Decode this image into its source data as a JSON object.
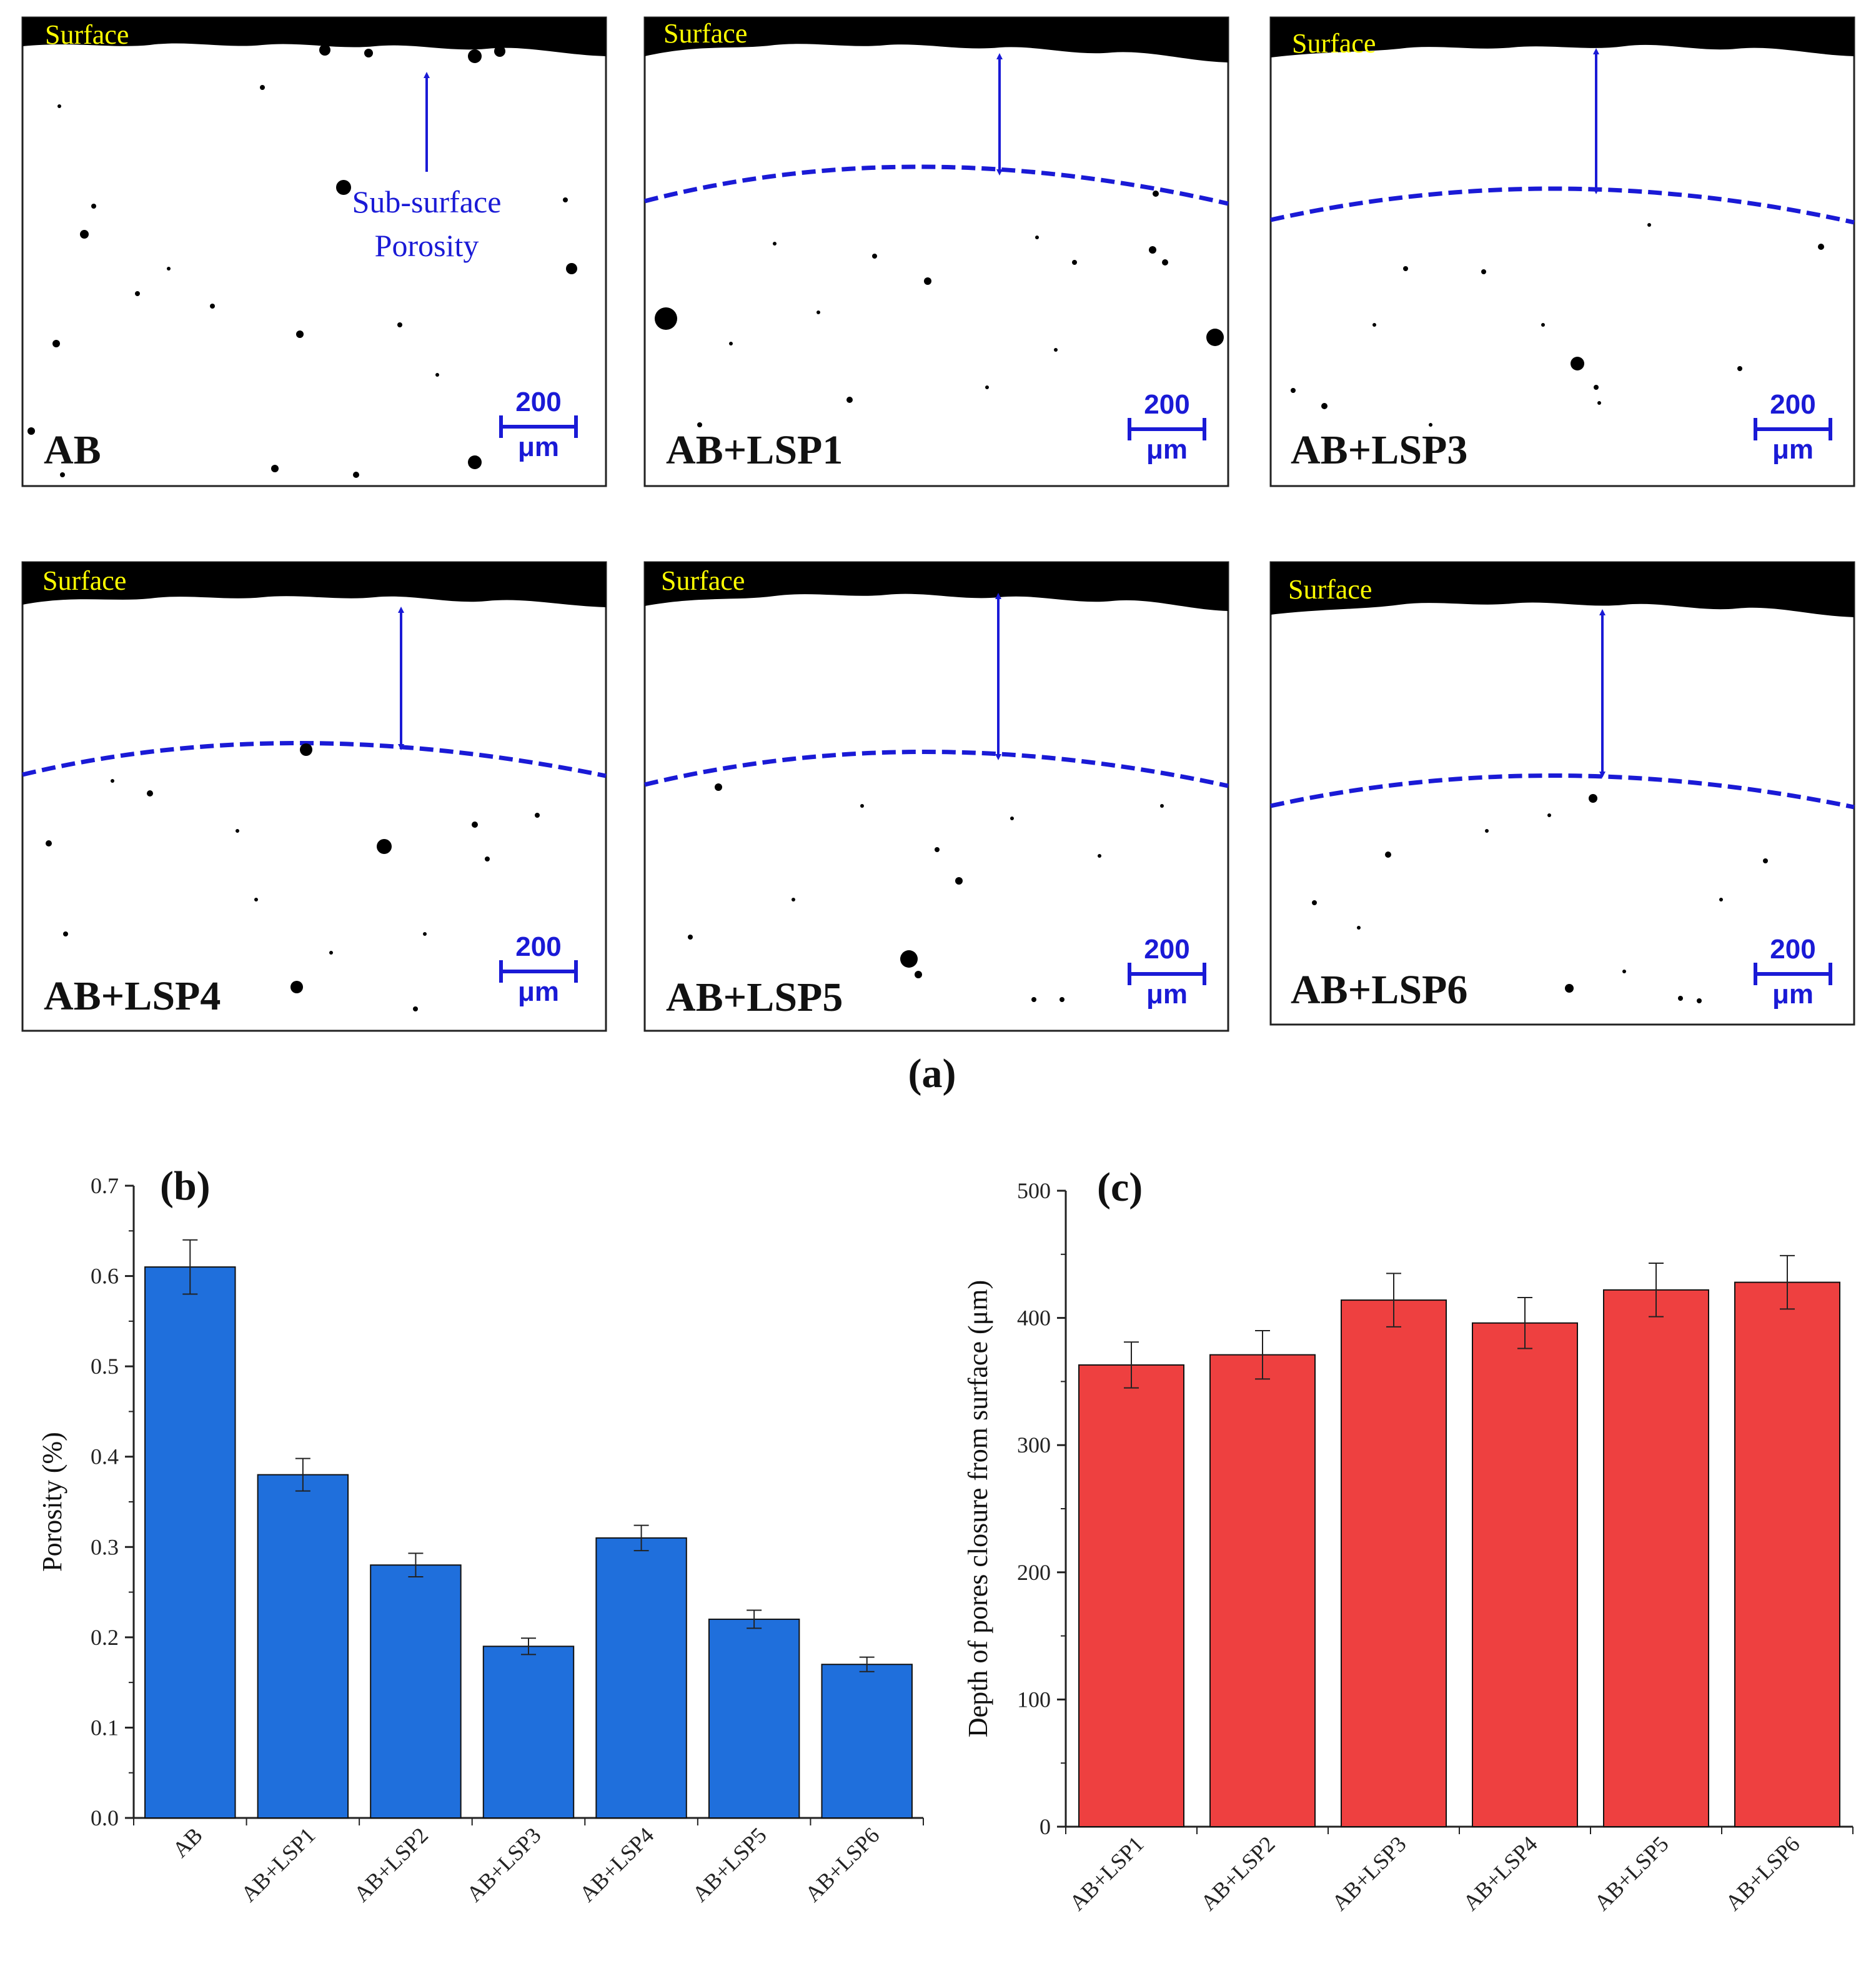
{
  "figure": {
    "label_a": "(a)",
    "micrographs": [
      {
        "name": "AB",
        "surface": "Surface",
        "scale_value": "200",
        "scale_unit": "μm"
      },
      {
        "name": "AB+LSP1",
        "surface": "Surface",
        "scale_value": "200",
        "scale_unit": "μm"
      },
      {
        "name": "AB+LSP3",
        "surface": "Surface",
        "scale_value": "200",
        "scale_unit": "μm"
      },
      {
        "name": "AB+LSP4",
        "surface": "Surface",
        "scale_value": "200",
        "scale_unit": "μm"
      },
      {
        "name": "AB+LSP5",
        "surface": "Surface",
        "scale_value": "200",
        "scale_unit": "μm"
      },
      {
        "name": "AB+LSP6",
        "surface": "Surface",
        "scale_value": "200",
        "scale_unit": "μm"
      }
    ],
    "annotation_line1": "Sub-surface",
    "annotation_line2": "Porosity",
    "colors": {
      "surface_text": "#ffff00",
      "annotation": "#1a1ad6",
      "bar_b": "#1f6fdc",
      "bar_c": "#ee4040"
    }
  },
  "chart_data": [
    {
      "type": "bar",
      "title": "(b)",
      "xlabel": "",
      "ylabel": "Porosity (%)",
      "categories": [
        "AB",
        "AB+LSP1",
        "AB+LSP2",
        "AB+LSP3",
        "AB+LSP4",
        "AB+LSP5",
        "AB+LSP6"
      ],
      "values": [
        0.61,
        0.38,
        0.28,
        0.19,
        0.31,
        0.22,
        0.17
      ],
      "errors": [
        0.03,
        0.018,
        0.013,
        0.009,
        0.014,
        0.01,
        0.008
      ],
      "ylim": [
        0,
        0.7
      ],
      "yticks": [
        0,
        0.1,
        0.2,
        0.3,
        0.4,
        0.5,
        0.6,
        0.7
      ],
      "ytick_labels": [
        "0.0",
        "0.1",
        "0.2",
        "0.3",
        "0.4",
        "0.5",
        "0.6",
        "0.7"
      ]
    },
    {
      "type": "bar",
      "title": "(c)",
      "xlabel": "",
      "ylabel": "Depth of pores closure from surface (μm)",
      "categories": [
        "AB+LSP1",
        "AB+LSP2",
        "AB+LSP3",
        "AB+LSP4",
        "AB+LSP5",
        "AB+LSP6"
      ],
      "values": [
        363,
        371,
        414,
        396,
        422,
        428
      ],
      "errors": [
        18,
        19,
        21,
        20,
        21,
        21
      ],
      "ylim": [
        0,
        500
      ],
      "yticks": [
        0,
        100,
        200,
        300,
        400,
        500
      ],
      "ytick_labels": [
        "0",
        "100",
        "200",
        "300",
        "400",
        "500"
      ]
    }
  ]
}
